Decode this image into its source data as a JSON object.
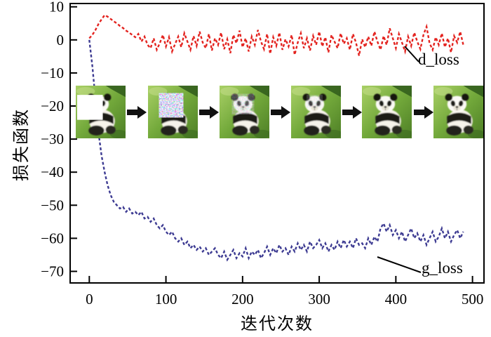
{
  "figure": {
    "background": "#ffffff"
  },
  "annotations": {
    "d_loss_label": "d_loss",
    "g_loss_label": "g_loss"
  },
  "chart_data": {
    "type": "line",
    "title": "",
    "xlabel": "迭代次数",
    "ylabel": "损失函数",
    "xlim": [
      -25,
      515
    ],
    "ylim": [
      -73.5,
      11
    ],
    "xticks": [
      0,
      100,
      200,
      300,
      400,
      500
    ],
    "yticks": [
      10,
      0,
      -10,
      -20,
      -30,
      -40,
      -50,
      -60,
      -70
    ],
    "grid": false,
    "line_style": "dashed",
    "legend_position": "inline-callouts",
    "x": [
      0,
      4,
      8,
      12,
      16,
      20,
      24,
      28,
      32,
      36,
      40,
      44,
      48,
      52,
      56,
      60,
      64,
      68,
      72,
      76,
      80,
      84,
      88,
      92,
      96,
      100,
      104,
      108,
      112,
      116,
      120,
      124,
      128,
      132,
      136,
      140,
      144,
      148,
      152,
      156,
      160,
      164,
      168,
      172,
      176,
      180,
      184,
      188,
      192,
      196,
      200,
      204,
      208,
      212,
      216,
      220,
      224,
      228,
      232,
      236,
      240,
      244,
      248,
      252,
      256,
      260,
      264,
      268,
      272,
      276,
      280,
      284,
      288,
      292,
      296,
      300,
      304,
      308,
      312,
      316,
      320,
      324,
      328,
      332,
      336,
      340,
      344,
      348,
      352,
      356,
      360,
      364,
      368,
      372,
      376,
      380,
      384,
      388,
      392,
      396,
      400,
      404,
      408,
      412,
      416,
      420,
      424,
      428,
      432,
      436,
      440,
      444,
      448,
      452,
      456,
      460,
      464,
      468,
      472,
      476,
      480,
      484,
      488
    ],
    "series": [
      {
        "name": "d_loss",
        "color": "#e3231f",
        "values": [
          0.5,
          1.5,
          3,
          4.8,
          6.2,
          7.5,
          7,
          6.3,
          5.6,
          5,
          4.2,
          3.6,
          2.8,
          2.2,
          1.5,
          0.8,
          1.8,
          -0.5,
          1,
          -1.5,
          -2.5,
          0.5,
          -3,
          -1,
          1.5,
          -2,
          0.8,
          -3.5,
          -1.2,
          1,
          -2.2,
          2,
          -0.5,
          -3,
          1.2,
          -1.8,
          2.5,
          -0.8,
          -2.5,
          1.8,
          -3.2,
          0.5,
          -1.5,
          2.2,
          -2.8,
          0.2,
          -4,
          1.5,
          -1,
          2.8,
          -2.2,
          0.5,
          -3.5,
          1,
          -1.5,
          3,
          -0.5,
          -2.8,
          1.8,
          -4.2,
          0.8,
          -1.8,
          2.2,
          -3,
          0.2,
          -2,
          1.5,
          -4.5,
          -0.8,
          2,
          -2.5,
          0.5,
          -3.2,
          1.2,
          -1.5,
          2.5,
          -2,
          0.8,
          -3.8,
          1.5,
          -0.5,
          -2.5,
          2,
          -1.2,
          0.5,
          -3,
          1.8,
          -0.8,
          -4.8,
          0.2,
          -2.2,
          1,
          -1.8,
          2.5,
          -0.5,
          -3,
          1.2,
          -1.5,
          3.5,
          0.5,
          -2.5,
          1.8,
          -0.8,
          -3.5,
          1,
          -1.8,
          2.2,
          -0.5,
          -2.8,
          1.5,
          4,
          -1,
          -3,
          0.8,
          -1.5,
          2,
          -2.2,
          0.5,
          -3.8,
          1.2,
          -0.8,
          2.5,
          -1.5
        ]
      },
      {
        "name": "g_loss",
        "color": "#3d3b92",
        "values": [
          0,
          -8,
          -18,
          -28,
          -35,
          -40,
          -44,
          -47,
          -49,
          -50,
          -51,
          -50.5,
          -52,
          -51,
          -52.5,
          -52,
          -53,
          -52,
          -54,
          -53.5,
          -55,
          -54,
          -56,
          -57,
          -56,
          -58,
          -59,
          -58,
          -60,
          -61,
          -60,
          -62,
          -61,
          -63,
          -62,
          -63.5,
          -62.5,
          -64,
          -63,
          -65,
          -64,
          -63,
          -65,
          -66,
          -64,
          -66.5,
          -65,
          -63.5,
          -66,
          -64.5,
          -65.5,
          -63,
          -66,
          -64,
          -65,
          -63.5,
          -66,
          -64.5,
          -62.5,
          -65,
          -63,
          -64.5,
          -62,
          -64,
          -63,
          -65,
          -62.5,
          -64,
          -61.5,
          -63.5,
          -62,
          -64,
          -61,
          -63,
          -62,
          -60.5,
          -63,
          -61.5,
          -64,
          -62,
          -63.5,
          -61,
          -63,
          -60.5,
          -62.5,
          -61,
          -63,
          -60,
          -62,
          -61.5,
          -63,
          -60,
          -62,
          -59.5,
          -61,
          -57,
          -55.5,
          -58,
          -56,
          -59,
          -57.5,
          -60,
          -58,
          -61,
          -59,
          -57,
          -60,
          -58.5,
          -61,
          -59,
          -62,
          -60,
          -58,
          -61,
          -59.5,
          -57,
          -60,
          -58,
          -61,
          -59,
          -57.5,
          -60,
          -58
        ]
      }
    ],
    "inset_images": {
      "description": "panda image inpainting progression over training",
      "count": 6,
      "stages": [
        "masked",
        "noise-fill",
        "coarse-restore",
        "refined",
        "near-final",
        "final"
      ]
    }
  }
}
